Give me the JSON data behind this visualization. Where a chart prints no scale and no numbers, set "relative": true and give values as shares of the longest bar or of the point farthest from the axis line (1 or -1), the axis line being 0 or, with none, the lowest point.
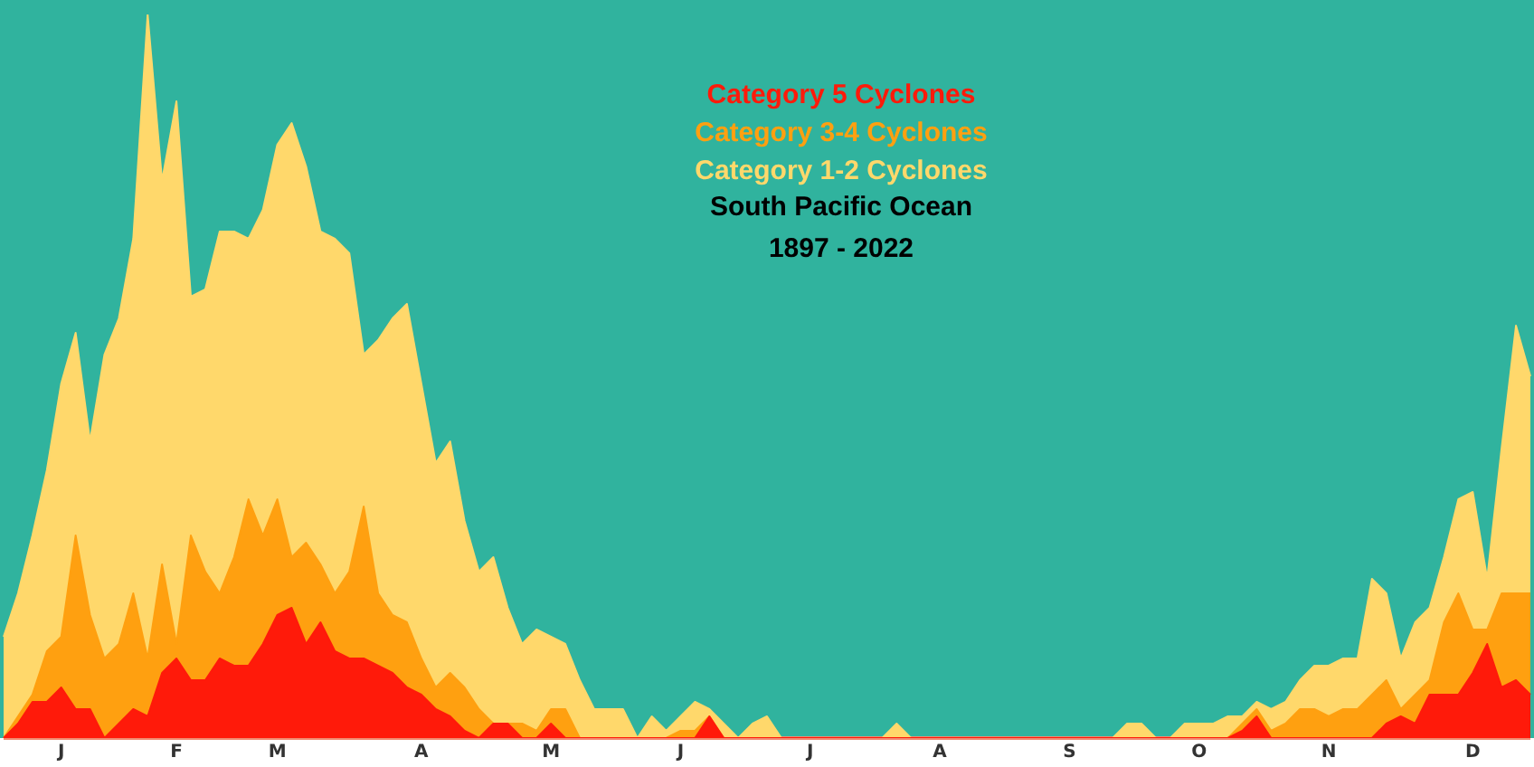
{
  "chart_data": {
    "type": "area",
    "title": "South Pacific Ocean",
    "subtitle": "1897 - 2022",
    "relative": true,
    "stacked": true,
    "grid": false,
    "marker": "none",
    "legend": "top",
    "categories": [
      null,
      null,
      null,
      null,
      "J",
      null,
      null,
      null,
      null,
      null,
      null,
      null,
      "F",
      null,
      null,
      null,
      null,
      null,
      null,
      "M",
      null,
      null,
      null,
      null,
      null,
      null,
      null,
      null,
      null,
      "A",
      null,
      null,
      null,
      null,
      null,
      null,
      null,
      null,
      "M",
      null,
      null,
      null,
      null,
      null,
      null,
      null,
      null,
      "J",
      null,
      null,
      null,
      null,
      null,
      null,
      null,
      null,
      "J",
      null,
      null,
      null,
      null,
      null,
      null,
      null,
      null,
      "A",
      null,
      null,
      null,
      null,
      null,
      null,
      null,
      null,
      "S",
      null,
      null,
      null,
      null,
      null,
      null,
      null,
      null,
      "O",
      null,
      null,
      null,
      null,
      null,
      null,
      null,
      null,
      "N",
      null,
      null,
      null,
      null,
      null,
      null,
      null,
      null,
      null,
      "D",
      null,
      null,
      null,
      null
    ],
    "series": [
      {
        "name": "Category 5 Cyclones",
        "color": "#ff1a0a",
        "values": [
          0,
          0.02,
          0.05,
          0.05,
          0.07,
          0.04,
          0.04,
          0,
          0.02,
          0.04,
          0.03,
          0.09,
          0.11,
          0.08,
          0.08,
          0.11,
          0.1,
          0.1,
          0.13,
          0.17,
          0.18,
          0.13,
          0.16,
          0.12,
          0.11,
          0.11,
          0.1,
          0.09,
          0.07,
          0.06,
          0.04,
          0.03,
          0.01,
          0,
          0.02,
          0.02,
          0,
          0,
          0.02,
          0,
          0,
          0,
          0,
          0,
          0,
          0,
          0,
          0,
          0,
          0.03,
          0,
          0,
          0,
          0,
          0,
          0,
          0,
          0,
          0,
          0,
          0,
          0,
          0,
          0,
          0,
          0,
          0,
          0,
          0,
          0,
          0,
          0,
          0,
          0,
          0,
          0,
          0,
          0,
          0,
          0,
          0,
          0,
          0,
          0,
          0,
          0,
          0.01,
          0.03,
          0,
          0,
          0,
          0,
          0,
          0,
          0,
          0,
          0.02,
          0.03,
          0.02,
          0.06,
          0.06,
          0.06,
          0.09,
          0.13,
          0.07,
          0.08,
          0.06
        ]
      },
      {
        "name": "Category 3-4 Cyclones",
        "color": "#ffa010",
        "values": [
          0,
          0.01,
          0.01,
          0.07,
          0.07,
          0.24,
          0.13,
          0.11,
          0.11,
          0.16,
          0.08,
          0.15,
          0.02,
          0.2,
          0.15,
          0.09,
          0.15,
          0.23,
          0.15,
          0.16,
          0.07,
          0.14,
          0.08,
          0.08,
          0.12,
          0.21,
          0.1,
          0.08,
          0.09,
          0.05,
          0.03,
          0.06,
          0.06,
          0.04,
          0,
          0,
          0.02,
          0.01,
          0.02,
          0.04,
          0,
          0,
          0,
          0,
          0,
          0,
          0,
          0.01,
          0.01,
          0,
          0,
          0,
          0,
          0,
          0,
          0,
          0,
          0,
          0,
          0,
          0,
          0,
          0,
          0,
          0,
          0,
          0,
          0,
          0,
          0,
          0,
          0,
          0,
          0,
          0,
          0,
          0,
          0,
          0,
          0,
          0,
          0,
          0,
          0,
          0,
          0,
          0.01,
          0.01,
          0.01,
          0.02,
          0.04,
          0.04,
          0.03,
          0.04,
          0.04,
          0.06,
          0.06,
          0.01,
          0.04,
          0.02,
          0.1,
          0.14,
          0.06,
          0.02,
          0.13,
          0.12,
          0.14
        ]
      },
      {
        "name": "Category 1-2 Cyclones",
        "color": "#ffd86b",
        "values": [
          0.14,
          0.17,
          0.22,
          0.25,
          0.35,
          0.28,
          0.24,
          0.42,
          0.45,
          0.49,
          0.89,
          0.53,
          0.75,
          0.33,
          0.39,
          0.5,
          0.45,
          0.36,
          0.45,
          0.49,
          0.6,
          0.52,
          0.46,
          0.49,
          0.44,
          0.21,
          0.35,
          0.41,
          0.44,
          0.38,
          0.31,
          0.32,
          0.23,
          0.19,
          0.23,
          0.16,
          0.11,
          0.14,
          0.1,
          0.09,
          0.08,
          0.04,
          0.04,
          0.04,
          0,
          0.03,
          0.01,
          0.02,
          0.04,
          0.01,
          0.02,
          0,
          0.02,
          0.03,
          0,
          0,
          0,
          0,
          0,
          0,
          0,
          0,
          0.02,
          0,
          0,
          0,
          0,
          0,
          0,
          0,
          0,
          0,
          0,
          0,
          0,
          0,
          0,
          0,
          0.02,
          0.02,
          0,
          0,
          0.02,
          0.02,
          0.02,
          0.03,
          0.01,
          0.01,
          0.03,
          0.03,
          0.04,
          0.06,
          0.07,
          0.07,
          0.07,
          0.16,
          0.12,
          0.07,
          0.1,
          0.1,
          0.09,
          0.13,
          0.19,
          0.07,
          0.2,
          0.37,
          0.3
        ]
      }
    ]
  }
}
